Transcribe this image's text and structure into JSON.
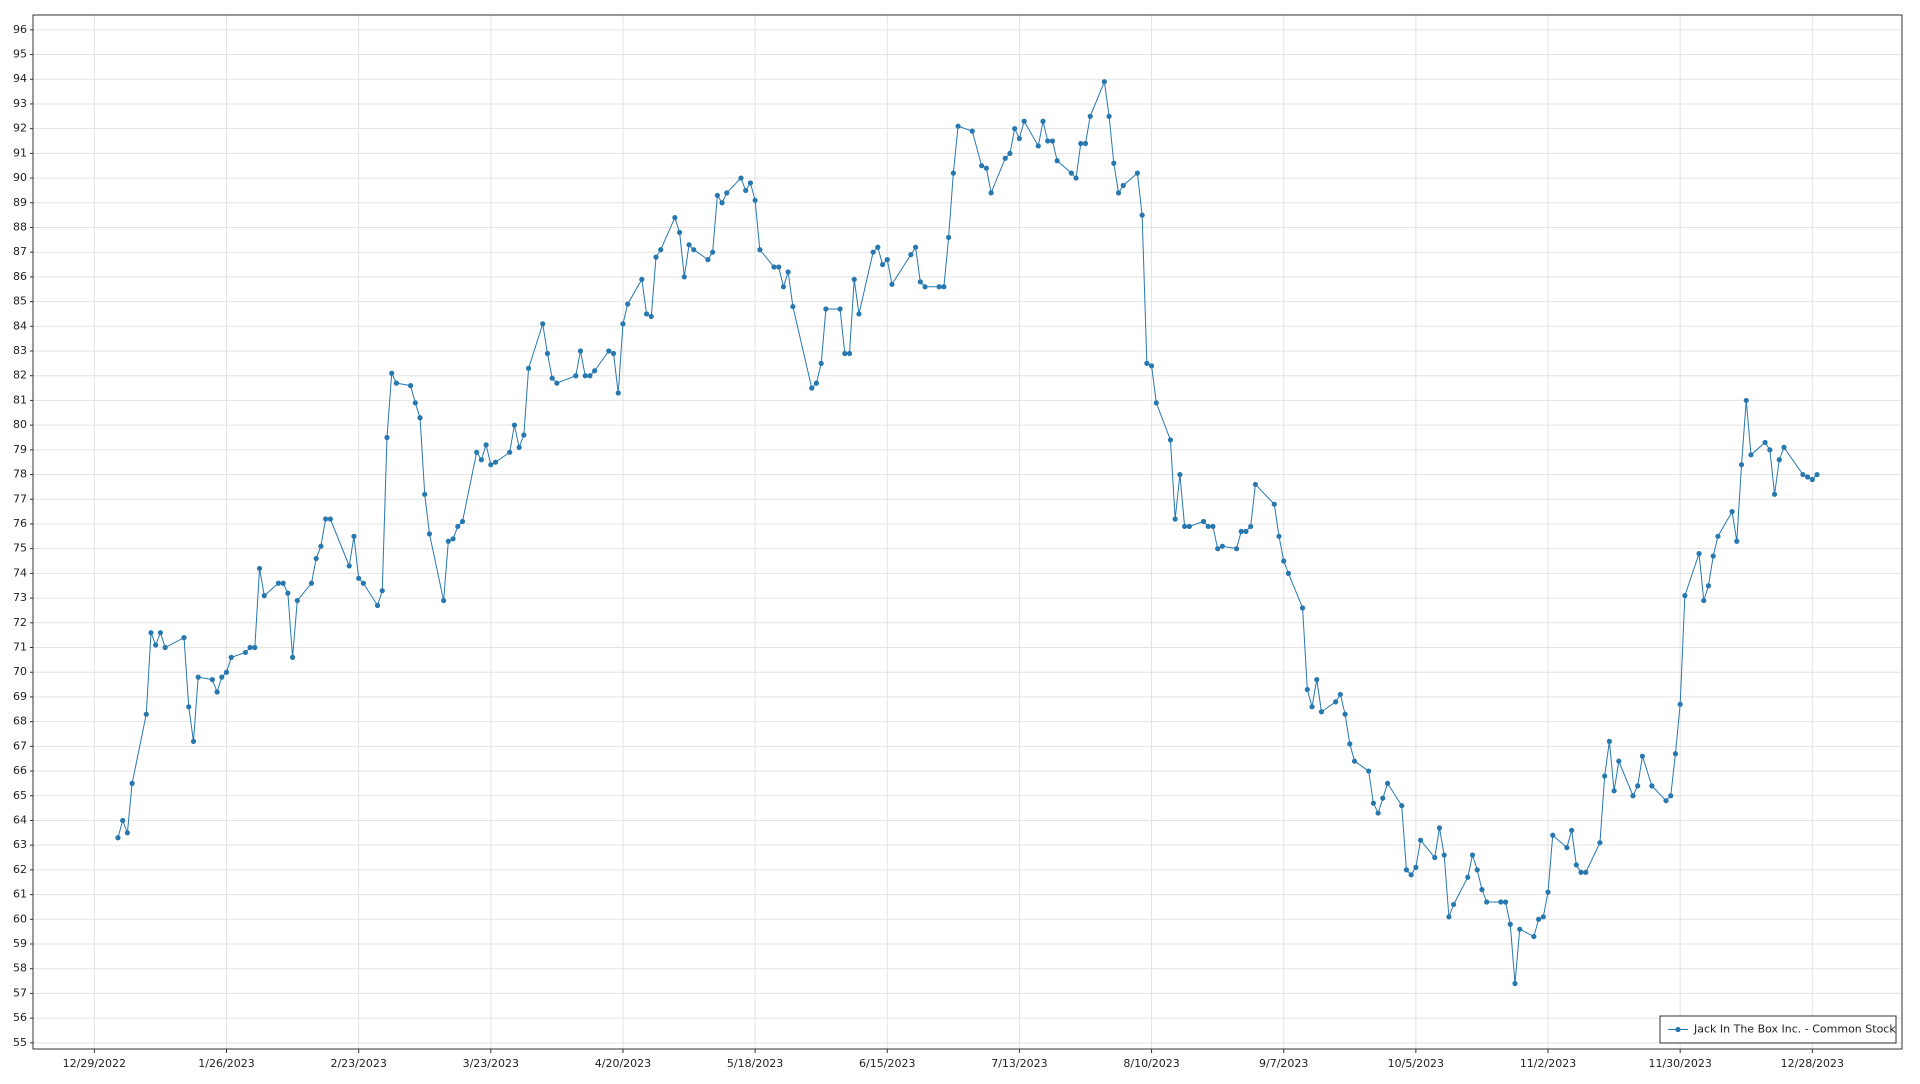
{
  "chart_data": {
    "type": "line",
    "x": [
      "1/3/2023",
      "1/4/2023",
      "1/5/2023",
      "1/6/2023",
      "1/9/2023",
      "1/10/2023",
      "1/11/2023",
      "1/12/2023",
      "1/13/2023",
      "1/17/2023",
      "1/18/2023",
      "1/19/2023",
      "1/20/2023",
      "1/23/2023",
      "1/24/2023",
      "1/25/2023",
      "1/26/2023",
      "1/27/2023",
      "1/30/2023",
      "1/31/2023",
      "2/1/2023",
      "2/2/2023",
      "2/3/2023",
      "2/6/2023",
      "2/7/2023",
      "2/8/2023",
      "2/9/2023",
      "2/10/2023",
      "2/13/2023",
      "2/14/2023",
      "2/15/2023",
      "2/16/2023",
      "2/17/2023",
      "2/21/2023",
      "2/22/2023",
      "2/23/2023",
      "2/24/2023",
      "2/27/2023",
      "2/28/2023",
      "3/1/2023",
      "3/2/2023",
      "3/3/2023",
      "3/6/2023",
      "3/7/2023",
      "3/8/2023",
      "3/9/2023",
      "3/10/2023",
      "3/13/2023",
      "3/14/2023",
      "3/15/2023",
      "3/16/2023",
      "3/17/2023",
      "3/20/2023",
      "3/21/2023",
      "3/22/2023",
      "3/23/2023",
      "3/24/2023",
      "3/27/2023",
      "3/28/2023",
      "3/29/2023",
      "3/30/2023",
      "3/31/2023",
      "4/3/2023",
      "4/4/2023",
      "4/5/2023",
      "4/6/2023",
      "4/10/2023",
      "4/11/2023",
      "4/12/2023",
      "4/13/2023",
      "4/14/2023",
      "4/17/2023",
      "4/18/2023",
      "4/19/2023",
      "4/20/2023",
      "4/21/2023",
      "4/24/2023",
      "4/25/2023",
      "4/26/2023",
      "4/27/2023",
      "4/28/2023",
      "5/1/2023",
      "5/2/2023",
      "5/3/2023",
      "5/4/2023",
      "5/5/2023",
      "5/8/2023",
      "5/9/2023",
      "5/10/2023",
      "5/11/2023",
      "5/12/2023",
      "5/15/2023",
      "5/16/2023",
      "5/17/2023",
      "5/18/2023",
      "5/19/2023",
      "5/22/2023",
      "5/23/2023",
      "5/24/2023",
      "5/25/2023",
      "5/26/2023",
      "5/30/2023",
      "5/31/2023",
      "6/1/2023",
      "6/2/2023",
      "6/5/2023",
      "6/6/2023",
      "6/7/2023",
      "6/8/2023",
      "6/9/2023",
      "6/12/2023",
      "6/13/2023",
      "6/14/2023",
      "6/15/2023",
      "6/16/2023",
      "6/20/2023",
      "6/21/2023",
      "6/22/2023",
      "6/23/2023",
      "6/26/2023",
      "6/27/2023",
      "6/28/2023",
      "6/29/2023",
      "6/30/2023",
      "7/3/2023",
      "7/5/2023",
      "7/6/2023",
      "7/7/2023",
      "7/10/2023",
      "7/11/2023",
      "7/12/2023",
      "7/13/2023",
      "7/14/2023",
      "7/17/2023",
      "7/18/2023",
      "7/19/2023",
      "7/20/2023",
      "7/21/2023",
      "7/24/2023",
      "7/25/2023",
      "7/26/2023",
      "7/27/2023",
      "7/28/2023",
      "7/31/2023",
      "8/1/2023",
      "8/2/2023",
      "8/3/2023",
      "8/4/2023",
      "8/7/2023",
      "8/8/2023",
      "8/9/2023",
      "8/10/2023",
      "8/11/2023",
      "8/14/2023",
      "8/15/2023",
      "8/16/2023",
      "8/17/2023",
      "8/18/2023",
      "8/21/2023",
      "8/22/2023",
      "8/23/2023",
      "8/24/2023",
      "8/25/2023",
      "8/28/2023",
      "8/29/2023",
      "8/30/2023",
      "8/31/2023",
      "9/1/2023",
      "9/5/2023",
      "9/6/2023",
      "9/7/2023",
      "9/8/2023",
      "9/11/2023",
      "9/12/2023",
      "9/13/2023",
      "9/14/2023",
      "9/15/2023",
      "9/18/2023",
      "9/19/2023",
      "9/20/2023",
      "9/21/2023",
      "9/22/2023",
      "9/25/2023",
      "9/26/2023",
      "9/27/2023",
      "9/28/2023",
      "9/29/2023",
      "10/2/2023",
      "10/3/2023",
      "10/4/2023",
      "10/5/2023",
      "10/6/2023",
      "10/9/2023",
      "10/10/2023",
      "10/11/2023",
      "10/12/2023",
      "10/13/2023",
      "10/16/2023",
      "10/17/2023",
      "10/18/2023",
      "10/19/2023",
      "10/20/2023",
      "10/23/2023",
      "10/24/2023",
      "10/25/2023",
      "10/26/2023",
      "10/27/2023",
      "10/30/2023",
      "10/31/2023",
      "11/1/2023",
      "11/2/2023",
      "11/3/2023",
      "11/6/2023",
      "11/7/2023",
      "11/8/2023",
      "11/9/2023",
      "11/10/2023",
      "11/13/2023",
      "11/14/2023",
      "11/15/2023",
      "11/16/2023",
      "11/17/2023",
      "11/20/2023",
      "11/21/2023",
      "11/22/2023",
      "11/24/2023",
      "11/27/2023",
      "11/28/2023",
      "11/29/2023",
      "11/30/2023",
      "12/1/2023",
      "12/4/2023",
      "12/5/2023",
      "12/6/2023",
      "12/7/2023",
      "12/8/2023",
      "12/11/2023",
      "12/12/2023",
      "12/13/2023",
      "12/14/2023",
      "12/15/2023",
      "12/18/2023",
      "12/19/2023",
      "12/20/2023",
      "12/21/2023",
      "12/22/2023",
      "12/26/2023",
      "12/27/2023",
      "12/28/2023",
      "12/29/2023"
    ],
    "series": [
      {
        "name": "Jack In The Box Inc. - Common Stock",
        "color": "#2878b0",
        "values": [
          63.3,
          64.0,
          63.5,
          65.5,
          68.3,
          71.6,
          71.1,
          71.6,
          71.0,
          71.4,
          68.6,
          67.2,
          69.8,
          69.7,
          69.2,
          69.8,
          70.0,
          70.6,
          70.8,
          71.0,
          71.0,
          74.2,
          73.1,
          73.6,
          73.6,
          73.2,
          70.6,
          72.9,
          73.6,
          74.6,
          75.1,
          76.2,
          76.2,
          74.3,
          75.5,
          73.8,
          73.6,
          72.7,
          73.3,
          79.5,
          82.1,
          81.7,
          81.6,
          80.9,
          80.3,
          77.2,
          75.6,
          72.9,
          75.3,
          75.4,
          75.9,
          76.1,
          78.9,
          78.6,
          79.2,
          78.4,
          78.5,
          78.9,
          80.0,
          79.1,
          79.6,
          82.3,
          84.1,
          82.9,
          81.9,
          81.7,
          82.0,
          83.0,
          82.0,
          82.0,
          82.2,
          83.0,
          82.9,
          81.3,
          84.1,
          84.9,
          85.9,
          84.5,
          84.4,
          86.8,
          87.1,
          88.4,
          87.8,
          86.0,
          87.3,
          87.1,
          86.7,
          87.0,
          89.3,
          89.0,
          89.4,
          90.0,
          89.5,
          89.8,
          89.1,
          87.1,
          86.4,
          86.4,
          85.6,
          86.2,
          84.8,
          81.5,
          81.7,
          82.5,
          84.7,
          84.7,
          82.9,
          82.9,
          85.9,
          84.5,
          87.0,
          87.2,
          86.5,
          86.7,
          85.7,
          86.9,
          87.2,
          85.8,
          85.6,
          85.6,
          85.6,
          87.6,
          90.2,
          92.1,
          91.9,
          90.5,
          90.4,
          89.4,
          90.8,
          91.0,
          92.0,
          91.6,
          92.3,
          91.3,
          92.3,
          91.5,
          91.5,
          90.7,
          90.2,
          90.0,
          91.4,
          91.4,
          92.5,
          93.9,
          92.5,
          90.6,
          89.4,
          89.7,
          90.2,
          88.5,
          82.5,
          82.4,
          80.9,
          79.4,
          76.2,
          78.0,
          75.9,
          75.9,
          76.1,
          75.9,
          75.9,
          75.0,
          75.1,
          75.0,
          75.7,
          75.7,
          75.9,
          77.6,
          76.8,
          75.5,
          74.5,
          74.0,
          72.6,
          69.3,
          68.6,
          69.7,
          68.4,
          68.8,
          69.1,
          68.3,
          67.1,
          66.4,
          66.0,
          64.7,
          64.3,
          64.9,
          65.5,
          64.6,
          62.0,
          61.8,
          62.1,
          63.2,
          62.5,
          63.7,
          62.6,
          60.1,
          60.6,
          61.7,
          62.6,
          62.0,
          61.2,
          60.7,
          60.7,
          60.7,
          59.8,
          57.4,
          59.6,
          59.3,
          60.0,
          60.1,
          61.1,
          63.4,
          62.9,
          63.6,
          62.2,
          61.9,
          61.9,
          63.1,
          65.8,
          67.2,
          65.2,
          66.4,
          65.0,
          65.4,
          66.6,
          65.4,
          64.8,
          65.0,
          66.7,
          68.7,
          73.1,
          74.8,
          72.9,
          73.5,
          74.7,
          75.5,
          76.5,
          75.3,
          78.4,
          81.0,
          78.8,
          79.3,
          79.0,
          77.2,
          78.6,
          79.1,
          78.0,
          77.9,
          77.8,
          78.0
        ]
      }
    ],
    "xlim": [
      "12/16/2022",
      "1/16/2024"
    ],
    "xticks": [
      "12/29/2022",
      "1/26/2023",
      "2/23/2023",
      "3/23/2023",
      "4/20/2023",
      "5/18/2023",
      "6/15/2023",
      "7/13/2023",
      "8/10/2023",
      "9/7/2023",
      "10/5/2023",
      "11/2/2023",
      "11/30/2023",
      "12/28/2023"
    ],
    "ylim": [
      54.75,
      96.6
    ],
    "yticks": [
      55,
      56,
      57,
      58,
      59,
      60,
      61,
      62,
      63,
      64,
      65,
      66,
      67,
      68,
      69,
      70,
      71,
      72,
      73,
      74,
      75,
      76,
      77,
      78,
      79,
      80,
      81,
      82,
      83,
      84,
      85,
      86,
      87,
      88,
      89,
      90,
      91,
      92,
      93,
      94,
      95,
      96
    ],
    "grid": true,
    "legend": "lower right"
  }
}
